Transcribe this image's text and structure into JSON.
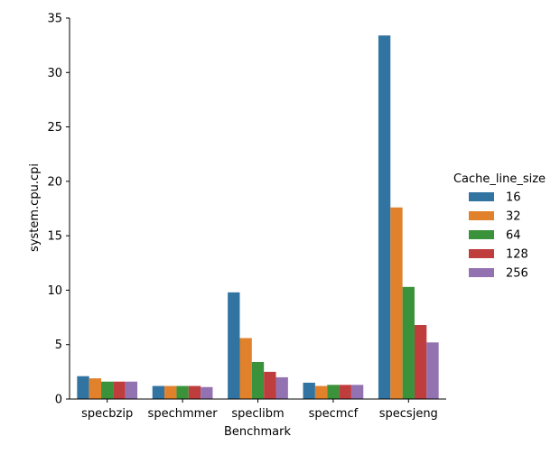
{
  "chart_data": {
    "type": "bar",
    "xlabel": "Benchmark",
    "ylabel": "system.cpu.cpi",
    "categories": [
      "specbzip",
      "spechmmer",
      "speclibm",
      "specmcf",
      "specsjeng"
    ],
    "ylim": [
      0,
      35
    ],
    "yticks": [
      0,
      5,
      10,
      15,
      20,
      25,
      30,
      35
    ],
    "grid": false,
    "legend": {
      "title": "Cache_line_size",
      "placement": "right"
    },
    "series": [
      {
        "name": "16",
        "color": "#3274a1",
        "values": [
          2.1,
          1.2,
          9.8,
          1.5,
          33.4
        ]
      },
      {
        "name": "32",
        "color": "#e1812c",
        "values": [
          1.9,
          1.2,
          5.6,
          1.2,
          17.6
        ]
      },
      {
        "name": "64",
        "color": "#3a923a",
        "values": [
          1.6,
          1.2,
          3.4,
          1.3,
          10.3
        ]
      },
      {
        "name": "128",
        "color": "#c03d3e",
        "values": [
          1.6,
          1.2,
          2.5,
          1.3,
          6.8
        ]
      },
      {
        "name": "256",
        "color": "#9372b2",
        "values": [
          1.6,
          1.1,
          2.0,
          1.3,
          5.2
        ]
      }
    ]
  }
}
